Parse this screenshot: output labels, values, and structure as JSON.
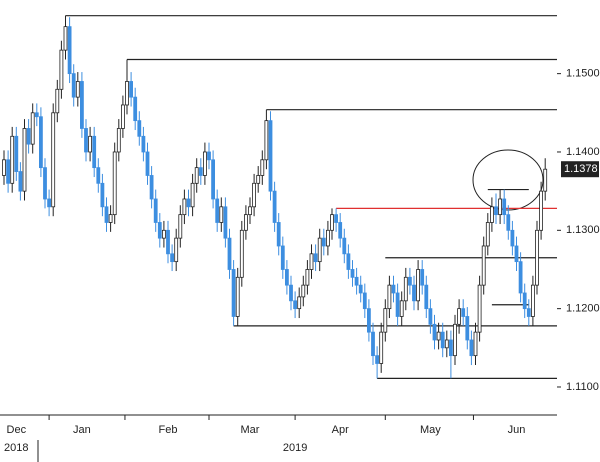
{
  "chart_data": {
    "type": "candlestick",
    "open": [
      1.137,
      1.139,
      1.136,
      1.142,
      1.1375,
      1.135,
      1.143,
      1.141,
      1.145,
      1.1445,
      1.138,
      1.134,
      1.133,
      1.145,
      1.148,
      1.153,
      1.156,
      1.15,
      1.147,
      1.149,
      1.143,
      1.14,
      1.142,
      1.138,
      1.136,
      1.133,
      1.131,
      1.132,
      1.14,
      1.143,
      1.146,
      1.149,
      1.147,
      1.144,
      1.142,
      1.14,
      1.137,
      1.134,
      1.131,
      1.129,
      1.13,
      1.127,
      1.126,
      1.129,
      1.132,
      1.134,
      1.133,
      1.136,
      1.138,
      1.137,
      1.14,
      1.139,
      1.134,
      1.131,
      1.133,
      1.129,
      1.125,
      1.119,
      1.124,
      1.13,
      1.132,
      1.133,
      1.136,
      1.137,
      1.139,
      1.144,
      1.135,
      1.131,
      1.128,
      1.125,
      1.123,
      1.121,
      1.12,
      1.1215,
      1.123,
      1.125,
      1.127,
      1.126,
      1.129,
      1.128,
      1.13,
      1.132,
      1.131,
      1.129,
      1.127,
      1.125,
      1.124,
      1.123,
      1.122,
      1.12,
      1.117,
      1.114,
      1.113,
      1.117,
      1.12,
      1.123,
      1.122,
      1.119,
      1.121,
      1.124,
      1.123,
      1.121,
      1.125,
      1.123,
      1.12,
      1.118,
      1.116,
      1.117,
      1.115,
      1.116,
      1.114,
      1.118,
      1.12,
      1.119,
      1.116,
      1.114,
      1.117,
      1.123,
      1.128,
      1.131,
      1.133,
      1.132,
      1.134,
      1.132,
      1.13,
      1.128,
      1.126,
      1.122,
      1.12,
      1.119,
      1.123,
      1.13,
      1.135
    ],
    "high": [
      1.1402,
      1.1402,
      1.1432,
      1.1432,
      1.1387,
      1.1442,
      1.1442,
      1.1462,
      1.1462,
      1.1457,
      1.1392,
      1.1352,
      1.1462,
      1.1492,
      1.1542,
      1.1574,
      1.1572,
      1.1512,
      1.1502,
      1.1502,
      1.1442,
      1.1432,
      1.1432,
      1.1392,
      1.1372,
      1.1342,
      1.1332,
      1.1412,
      1.1442,
      1.1472,
      1.1518,
      1.1502,
      1.1482,
      1.1452,
      1.1432,
      1.1412,
      1.1382,
      1.1352,
      1.1322,
      1.1312,
      1.1312,
      1.1282,
      1.1302,
      1.1332,
      1.1352,
      1.1352,
      1.1372,
      1.1392,
      1.1392,
      1.1412,
      1.1412,
      1.1402,
      1.1352,
      1.1342,
      1.1342,
      1.1302,
      1.1262,
      1.1252,
      1.1312,
      1.1332,
      1.1342,
      1.1372,
      1.1382,
      1.1402,
      1.1454,
      1.1452,
      1.1362,
      1.1322,
      1.1292,
      1.1262,
      1.1242,
      1.1222,
      1.1227,
      1.1242,
      1.1262,
      1.1282,
      1.1282,
      1.1302,
      1.1302,
      1.1312,
      1.1328,
      1.1328,
      1.1322,
      1.1302,
      1.1282,
      1.1262,
      1.1252,
      1.1242,
      1.1232,
      1.1212,
      1.1182,
      1.1152,
      1.1182,
      1.1212,
      1.1242,
      1.1242,
      1.1232,
      1.1222,
      1.1252,
      1.1252,
      1.1242,
      1.1262,
      1.1262,
      1.1242,
      1.1212,
      1.1192,
      1.1182,
      1.1182,
      1.1172,
      1.1172,
      1.1192,
      1.1212,
      1.1212,
      1.1202,
      1.1172,
      1.1182,
      1.1242,
      1.1292,
      1.1322,
      1.1342,
      1.1347,
      1.1352,
      1.1352,
      1.1332,
      1.1312,
      1.1292,
      1.1272,
      1.1232,
      1.1212,
      1.1242,
      1.1312,
      1.1362,
      1.1392
    ],
    "low": [
      1.1358,
      1.1348,
      1.1348,
      1.1363,
      1.1338,
      1.1338,
      1.1398,
      1.1398,
      1.1433,
      1.1368,
      1.1328,
      1.1318,
      1.1318,
      1.1438,
      1.1468,
      1.1518,
      1.1488,
      1.1458,
      1.1458,
      1.1418,
      1.1388,
      1.1388,
      1.1368,
      1.1348,
      1.1318,
      1.1298,
      1.1298,
      1.1308,
      1.1388,
      1.1418,
      1.1448,
      1.1458,
      1.1428,
      1.1408,
      1.1388,
      1.1358,
      1.1328,
      1.1298,
      1.1278,
      1.1278,
      1.1258,
      1.1248,
      1.1248,
      1.1278,
      1.1308,
      1.1318,
      1.1318,
      1.1348,
      1.1358,
      1.1358,
      1.1378,
      1.1328,
      1.1298,
      1.1298,
      1.1278,
      1.1238,
      1.1178,
      1.1178,
      1.1228,
      1.1288,
      1.1308,
      1.1318,
      1.1348,
      1.1358,
      1.1378,
      1.1338,
      1.1298,
      1.1268,
      1.1238,
      1.1218,
      1.1198,
      1.1188,
      1.1188,
      1.1203,
      1.1218,
      1.1238,
      1.1248,
      1.1248,
      1.1268,
      1.1268,
      1.1288,
      1.1298,
      1.1278,
      1.1258,
      1.1238,
      1.1228,
      1.1218,
      1.1208,
      1.1188,
      1.1158,
      1.1128,
      1.1111,
      1.1118,
      1.1158,
      1.1188,
      1.1208,
      1.1178,
      1.1178,
      1.1198,
      1.1218,
      1.1198,
      1.1198,
      1.1218,
      1.1188,
      1.1168,
      1.1148,
      1.1148,
      1.1138,
      1.1138,
      1.1111,
      1.1128,
      1.1168,
      1.1178,
      1.1148,
      1.1128,
      1.1128,
      1.1158,
      1.1218,
      1.1268,
      1.1298,
      1.1308,
      1.1308,
      1.1308,
      1.1288,
      1.1268,
      1.1248,
      1.1208,
      1.1188,
      1.1178,
      1.1178,
      1.1218,
      1.1288,
      1.1338
    ],
    "close": [
      1.139,
      1.136,
      1.142,
      1.1375,
      1.135,
      1.143,
      1.141,
      1.145,
      1.1445,
      1.138,
      1.134,
      1.133,
      1.145,
      1.148,
      1.153,
      1.156,
      1.15,
      1.147,
      1.149,
      1.143,
      1.14,
      1.142,
      1.138,
      1.136,
      1.133,
      1.131,
      1.132,
      1.14,
      1.143,
      1.146,
      1.149,
      1.147,
      1.144,
      1.142,
      1.14,
      1.137,
      1.134,
      1.131,
      1.129,
      1.13,
      1.127,
      1.126,
      1.129,
      1.132,
      1.134,
      1.133,
      1.136,
      1.138,
      1.137,
      1.14,
      1.139,
      1.134,
      1.131,
      1.133,
      1.129,
      1.125,
      1.119,
      1.124,
      1.13,
      1.132,
      1.133,
      1.136,
      1.137,
      1.139,
      1.144,
      1.135,
      1.131,
      1.128,
      1.125,
      1.123,
      1.121,
      1.12,
      1.1215,
      1.123,
      1.125,
      1.127,
      1.126,
      1.129,
      1.128,
      1.13,
      1.132,
      1.131,
      1.129,
      1.127,
      1.125,
      1.124,
      1.123,
      1.122,
      1.12,
      1.117,
      1.114,
      1.113,
      1.117,
      1.12,
      1.123,
      1.122,
      1.119,
      1.121,
      1.124,
      1.123,
      1.121,
      1.125,
      1.123,
      1.12,
      1.118,
      1.116,
      1.117,
      1.115,
      1.116,
      1.114,
      1.118,
      1.12,
      1.119,
      1.116,
      1.114,
      1.117,
      1.123,
      1.128,
      1.131,
      1.133,
      1.132,
      1.134,
      1.132,
      1.13,
      1.128,
      1.126,
      1.122,
      1.12,
      1.119,
      1.123,
      1.13,
      1.135,
      1.1378
    ],
    "up_color": "#ffffff",
    "down_color": "#3d8ee0",
    "ylim": [
      1.1077,
      1.1594
    ],
    "yticks": [
      {
        "value": 1.11,
        "label": "1.1100"
      },
      {
        "value": 1.12,
        "label": "1.1200"
      },
      {
        "value": 1.13,
        "label": "1.1300"
      },
      {
        "value": 1.14,
        "label": "1.1400"
      },
      {
        "value": 1.15,
        "label": "1.1500"
      }
    ],
    "xticks": [
      {
        "value": 3,
        "label": "Dec"
      },
      {
        "value": 19,
        "label": "Jan"
      },
      {
        "value": 40,
        "label": "Feb"
      },
      {
        "value": 60,
        "label": "Mar"
      },
      {
        "value": 82,
        "label": "Apr"
      },
      {
        "value": 104,
        "label": "May"
      },
      {
        "value": 125,
        "label": "Jun"
      }
    ],
    "years": [
      {
        "value": 3,
        "label": "2018"
      },
      {
        "value": 71,
        "label": "2019"
      }
    ],
    "levels": [
      {
        "value": 1.1574,
        "start": 15
      },
      {
        "value": 1.1518,
        "start": 30
      },
      {
        "value": 1.1454,
        "start": 64
      },
      {
        "value": 1.1328,
        "start": 81,
        "color": "#e03030"
      },
      {
        "value": 1.1265,
        "start": 93
      },
      {
        "value": 1.1178,
        "start": 56
      },
      {
        "value": 1.1111,
        "start": 91
      },
      {
        "value": 1.1352,
        "start": 118,
        "end": 128
      },
      {
        "value": 1.1205,
        "start": 119,
        "end": 128
      }
    ],
    "last_price": {
      "value": 1.1378,
      "label": "1.1378"
    }
  }
}
